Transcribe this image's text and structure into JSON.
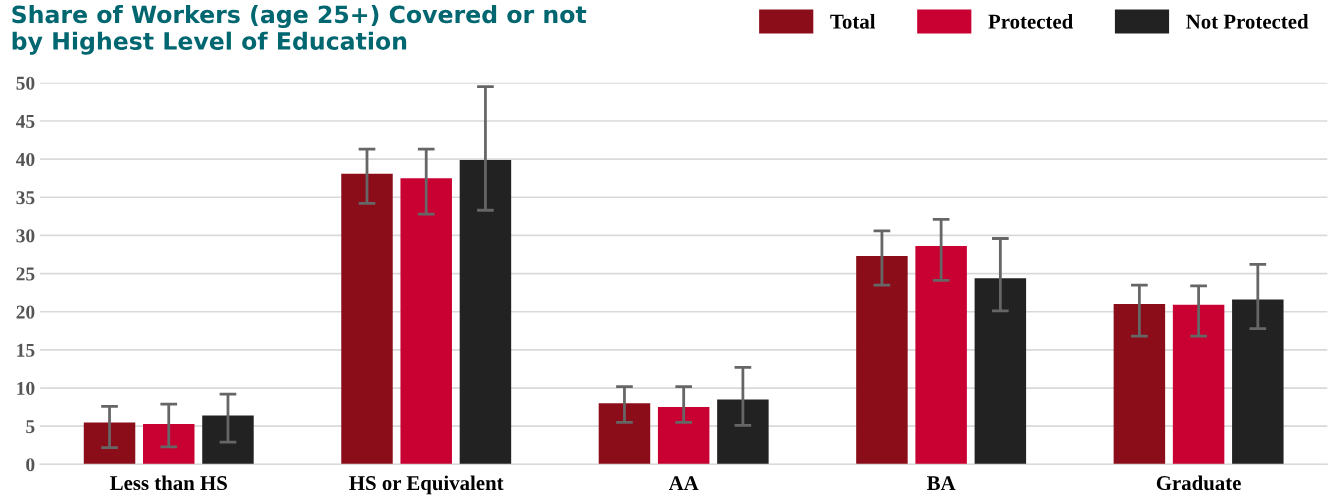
{
  "chart_data": {
    "type": "bar",
    "title": "Share of Workers (age 25+) Covered or not\nby Highest Level of Education",
    "categories": [
      "Less than HS",
      "HS or Equivalent",
      "AA",
      "BA",
      "Graduate"
    ],
    "series": [
      {
        "name": "Total",
        "color": "#8b0d1a",
        "values": [
          5.5,
          38.1,
          8.0,
          27.3,
          21.0
        ],
        "errors": [
          [
            2.2,
            7.6
          ],
          [
            34.2,
            41.3
          ],
          [
            5.5,
            10.2
          ],
          [
            23.5,
            30.6
          ],
          [
            16.8,
            23.5
          ]
        ]
      },
      {
        "name": "Protected",
        "color": "#c90032",
        "values": [
          5.3,
          37.5,
          7.5,
          28.6,
          20.9
        ],
        "errors": [
          [
            2.3,
            7.9
          ],
          [
            32.8,
            41.3
          ],
          [
            5.5,
            10.2
          ],
          [
            24.1,
            32.1
          ],
          [
            16.8,
            23.4
          ]
        ]
      },
      {
        "name": "Not Protected",
        "color": "#222222",
        "values": [
          6.4,
          39.9,
          8.5,
          24.4,
          21.6
        ],
        "errors": [
          [
            2.9,
            9.2
          ],
          [
            33.3,
            49.5
          ],
          [
            5.1,
            12.7
          ],
          [
            20.1,
            29.6
          ],
          [
            17.8,
            26.2
          ]
        ]
      }
    ],
    "ylim": [
      0,
      50
    ],
    "yticks": [
      0,
      5,
      10,
      15,
      20,
      25,
      30,
      35,
      40,
      45,
      50
    ],
    "grid": "y",
    "legend": "top right"
  }
}
